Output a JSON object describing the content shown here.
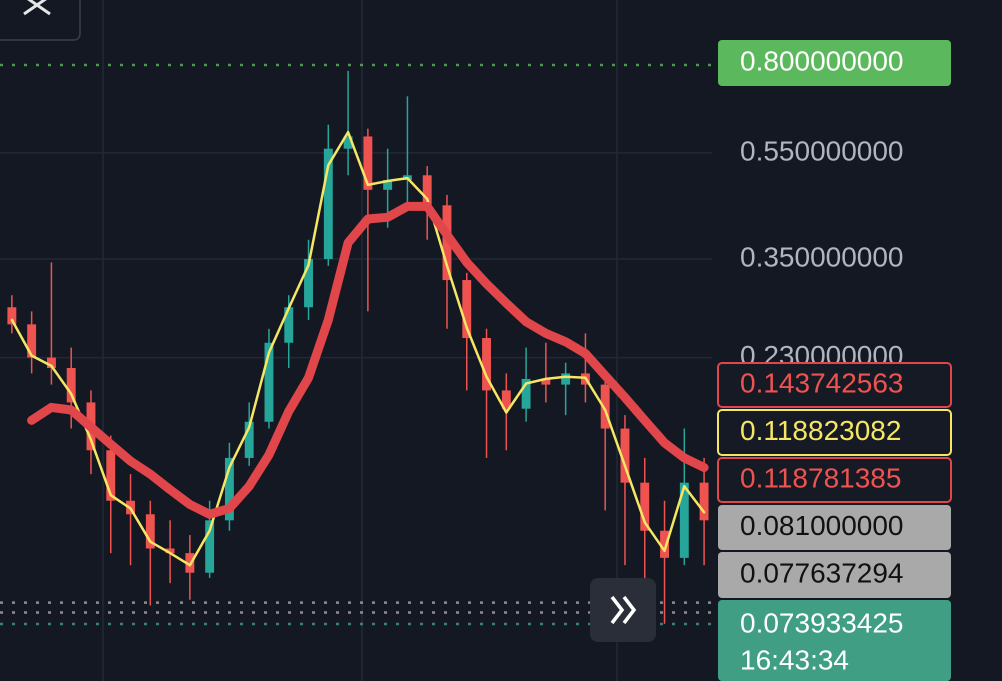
{
  "chart_data": {
    "type": "candlestick",
    "log_scale": true,
    "x": [
      0,
      1,
      2,
      3,
      4,
      5,
      6,
      7,
      8,
      9,
      10,
      11,
      12,
      13,
      14,
      15,
      16,
      17,
      18,
      19,
      20,
      21,
      22,
      23,
      24,
      25,
      26,
      27,
      28,
      29,
      30,
      31,
      32,
      33,
      34,
      35
    ],
    "open": [
      0.285,
      0.265,
      0.23,
      0.22,
      0.19,
      0.155,
      0.125,
      0.118,
      0.102,
      0.1,
      0.092,
      0.115,
      0.15,
      0.175,
      0.245,
      0.285,
      0.35,
      0.56,
      0.59,
      0.47,
      0.49,
      0.5,
      0.44,
      0.32,
      0.25,
      0.2,
      0.185,
      0.21,
      0.205,
      0.215,
      0.205,
      0.17,
      0.135,
      0.11,
      0.098,
      0.135
    ],
    "high": [
      0.3,
      0.28,
      0.345,
      0.24,
      0.2,
      0.165,
      0.14,
      0.125,
      0.115,
      0.108,
      0.125,
      0.16,
      0.19,
      0.26,
      0.3,
      0.38,
      0.62,
      0.78,
      0.61,
      0.56,
      0.7,
      0.52,
      0.46,
      0.33,
      0.26,
      0.215,
      0.24,
      0.245,
      0.225,
      0.255,
      0.215,
      0.18,
      0.15,
      0.125,
      0.17,
      0.15
    ],
    "low": [
      0.255,
      0.215,
      0.205,
      0.17,
      0.14,
      0.1,
      0.095,
      0.08,
      0.088,
      0.082,
      0.09,
      0.11,
      0.145,
      0.17,
      0.22,
      0.27,
      0.34,
      0.5,
      0.28,
      0.4,
      0.44,
      0.38,
      0.26,
      0.2,
      0.15,
      0.155,
      0.175,
      0.19,
      0.18,
      0.19,
      0.12,
      0.095,
      0.082,
      0.074,
      0.095,
      0.095
    ],
    "close": [
      0.265,
      0.23,
      0.22,
      0.19,
      0.155,
      0.125,
      0.118,
      0.102,
      0.1,
      0.092,
      0.115,
      0.15,
      0.175,
      0.245,
      0.285,
      0.35,
      0.56,
      0.59,
      0.47,
      0.49,
      0.5,
      0.44,
      0.32,
      0.25,
      0.2,
      0.185,
      0.21,
      0.205,
      0.215,
      0.205,
      0.17,
      0.135,
      0.11,
      0.098,
      0.135,
      0.115
    ],
    "up_color": "#26a69a",
    "down_color": "#ef5350",
    "series": [
      {
        "color": "#f5e663",
        "values": [
          0.27,
          0.232,
          0.222,
          0.197,
          0.162,
          0.128,
          0.121,
          0.105,
          0.1,
          0.095,
          0.11,
          0.144,
          0.171,
          0.235,
          0.284,
          0.341,
          0.522,
          0.601,
          0.48,
          0.488,
          0.494,
          0.452,
          0.34,
          0.261,
          0.212,
          0.182,
          0.206,
          0.21,
          0.212,
          0.211,
          0.184,
          0.145,
          0.114,
          0.101,
          0.133,
          0.119
        ]
      },
      {
        "color": "#e0464a",
        "values": [
          null,
          0.176,
          0.186,
          0.184,
          0.171,
          0.159,
          0.148,
          0.14,
          0.131,
          0.123,
          0.118,
          0.121,
          0.133,
          0.152,
          0.183,
          0.211,
          0.27,
          0.375,
          0.415,
          0.418,
          0.438,
          0.438,
          0.388,
          0.345,
          0.315,
          0.29,
          0.268,
          0.255,
          0.246,
          0.234,
          0.213,
          0.194,
          0.176,
          0.16,
          0.15,
          0.144
        ]
      }
    ],
    "xlim": [
      -0.6,
      35.4
    ],
    "ylim": [
      0.058,
      1.055
    ],
    "yticks": [
      {
        "value": 0.55,
        "label": "0.550000000"
      },
      {
        "value": 0.35,
        "label": "0.350000000"
      },
      {
        "value": 0.23,
        "label": "0.230000000"
      }
    ],
    "price_tags": [
      {
        "value": 0.8,
        "label": "0.800000000",
        "color": "#5cb85c",
        "text_color": "#ffffff",
        "filled": true,
        "line": true
      },
      {
        "value": 0.143742563,
        "label": "0.143742563",
        "color": "#e0464a",
        "text_color": "#ef5350",
        "filled": false,
        "line": false
      },
      {
        "value": 0.118823082,
        "label": "0.118823082",
        "color": "#f5e663",
        "text_color": "#f5e663",
        "filled": false,
        "line": false
      },
      {
        "value": 0.118781385,
        "label": "0.118781385",
        "color": "#e0464a",
        "text_color": "#ef5350",
        "filled": false,
        "line": false
      },
      {
        "value": 0.081,
        "label": "0.081000000",
        "color": "#a9a9a9",
        "text_color": "#111111",
        "filled": true,
        "line": true
      },
      {
        "value": 0.077637294,
        "label": "0.077637294",
        "color": "#a9a9a9",
        "text_color": "#111111",
        "filled": true,
        "line": true
      },
      {
        "value": 0.073933425,
        "label": "0.073933425",
        "time": "16:43:34",
        "color": "#3f9e84",
        "text_color": "#ffffff",
        "filled": true,
        "line": true
      }
    ]
  }
}
